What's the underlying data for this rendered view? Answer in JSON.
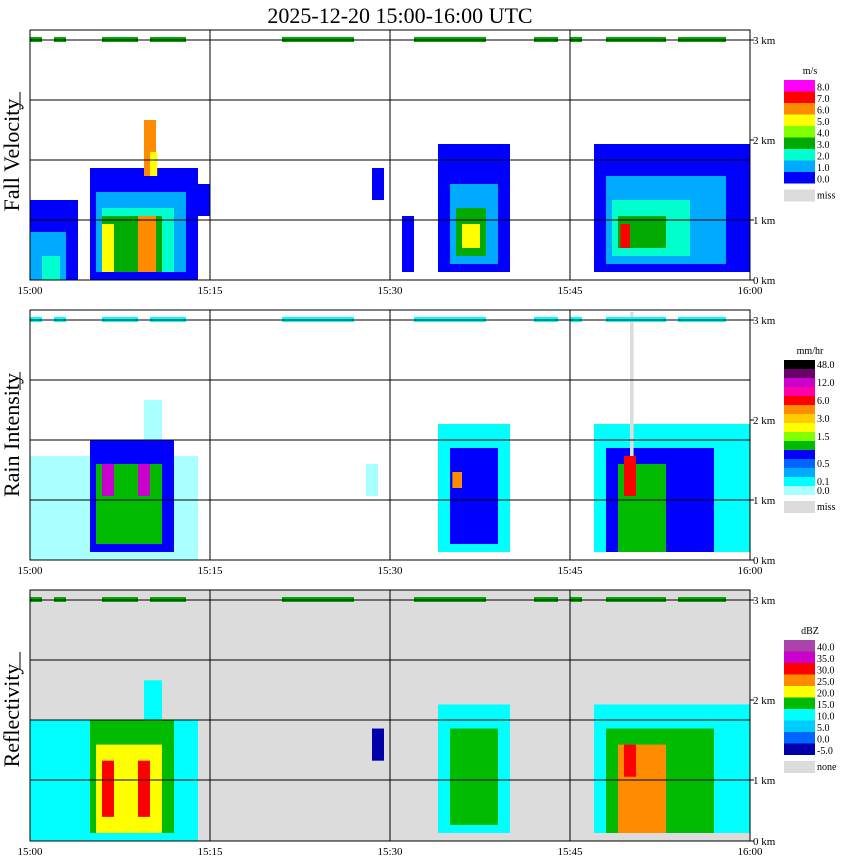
{
  "title": "2025-12-20  15:00-16:00 UTC",
  "x_ticks": [
    "15:00",
    "15:15",
    "15:30",
    "15:45",
    "16:00"
  ],
  "y_ticks": [
    "0 km",
    "1 km",
    "2 km",
    "3 km"
  ],
  "chart_data": [
    {
      "type": "heatmap",
      "panel_label": "Fall Velocity",
      "legend_unit": "m/s",
      "legend_entries": [
        {
          "label": "8.0",
          "color": "#ff00ff"
        },
        {
          "label": "7.0",
          "color": "#ff0000"
        },
        {
          "label": "6.0",
          "color": "#ff8c00"
        },
        {
          "label": "5.0",
          "color": "#ffff00"
        },
        {
          "label": "4.0",
          "color": "#7fff00"
        },
        {
          "label": "3.0",
          "color": "#00aa00"
        },
        {
          "label": "2.0",
          "color": "#00ffcc"
        },
        {
          "label": "1.0",
          "color": "#00aaff"
        },
        {
          "label": "0.0",
          "color": "#0000ff"
        },
        {
          "label": "miss",
          "color": "#dcdcdc"
        }
      ],
      "background": "#ffffff",
      "ylim": [
        0,
        3
      ],
      "xlim": [
        "15:00",
        "16:00"
      ],
      "grid": true,
      "cells": [
        {
          "t0": 0,
          "t1": 4,
          "z0": 0,
          "z1": 1.0,
          "c": "#0000ff"
        },
        {
          "t0": 0,
          "t1": 3,
          "z0": 0,
          "z1": 0.6,
          "c": "#00aaff"
        },
        {
          "t0": 1,
          "t1": 2.5,
          "z0": 0,
          "z1": 0.3,
          "c": "#00ffcc"
        },
        {
          "t0": 5,
          "t1": 14,
          "z0": 0,
          "z1": 1.4,
          "c": "#0000ff"
        },
        {
          "t0": 5.5,
          "t1": 13,
          "z0": 0.1,
          "z1": 1.1,
          "c": "#00aaff"
        },
        {
          "t0": 6,
          "t1": 12,
          "z0": 0.1,
          "z1": 0.9,
          "c": "#00ffcc"
        },
        {
          "t0": 6,
          "t1": 11,
          "z0": 0.1,
          "z1": 0.8,
          "c": "#00aa00"
        },
        {
          "t0": 6,
          "t1": 7,
          "z0": 0.1,
          "z1": 0.7,
          "c": "#ffff00"
        },
        {
          "t0": 9,
          "t1": 10.5,
          "z0": 0.1,
          "z1": 0.8,
          "c": "#ff8c00"
        },
        {
          "t0": 9.5,
          "t1": 10.5,
          "z0": 1.3,
          "z1": 2.0,
          "c": "#ff8c00"
        },
        {
          "t0": 10,
          "t1": 10.6,
          "z0": 1.3,
          "z1": 1.6,
          "c": "#ffff00"
        },
        {
          "t0": 14,
          "t1": 15,
          "z0": 0.8,
          "z1": 1.2,
          "c": "#0000ff"
        },
        {
          "t0": 28.5,
          "t1": 29.5,
          "z0": 1.0,
          "z1": 1.4,
          "c": "#0000ff"
        },
        {
          "t0": 31,
          "t1": 32,
          "z0": 0.1,
          "z1": 0.8,
          "c": "#0000ff"
        },
        {
          "t0": 34,
          "t1": 40,
          "z0": 0.1,
          "z1": 1.7,
          "c": "#0000ff"
        },
        {
          "t0": 35,
          "t1": 39,
          "z0": 0.2,
          "z1": 1.2,
          "c": "#00aaff"
        },
        {
          "t0": 35.5,
          "t1": 38,
          "z0": 0.3,
          "z1": 0.9,
          "c": "#00aa00"
        },
        {
          "t0": 36,
          "t1": 37.5,
          "z0": 0.4,
          "z1": 0.7,
          "c": "#ffff00"
        },
        {
          "t0": 47,
          "t1": 60,
          "z0": 0.1,
          "z1": 1.7,
          "c": "#0000ff"
        },
        {
          "t0": 48,
          "t1": 58,
          "z0": 0.2,
          "z1": 1.3,
          "c": "#00aaff"
        },
        {
          "t0": 48.5,
          "t1": 55,
          "z0": 0.3,
          "z1": 1.0,
          "c": "#00ffcc"
        },
        {
          "t0": 49,
          "t1": 53,
          "z0": 0.4,
          "z1": 0.8,
          "c": "#00aa00"
        },
        {
          "t0": 49.2,
          "t1": 50,
          "z0": 0.4,
          "z1": 0.7,
          "c": "#ff0000"
        }
      ]
    },
    {
      "type": "heatmap",
      "panel_label": "Rain Intensity",
      "legend_unit": "mm/hr",
      "legend_entries": [
        {
          "label": "48.0",
          "color": "#000000"
        },
        {
          "label": "",
          "color": "#6a006a"
        },
        {
          "label": "12.0",
          "color": "#cc00cc"
        },
        {
          "label": "",
          "color": "#ff00aa"
        },
        {
          "label": "6.0",
          "color": "#ff0000"
        },
        {
          "label": "",
          "color": "#ff8c00"
        },
        {
          "label": "3.0",
          "color": "#ffcc00"
        },
        {
          "label": "",
          "color": "#ffff00"
        },
        {
          "label": "1.5",
          "color": "#7fff00"
        },
        {
          "label": "",
          "color": "#00bb00"
        },
        {
          "label": "",
          "color": "#0000ff"
        },
        {
          "label": "0.5",
          "color": "#0066ff"
        },
        {
          "label": "",
          "color": "#00aaff"
        },
        {
          "label": "0.1",
          "color": "#00ffff"
        },
        {
          "label": "0.0",
          "color": "#aaffff"
        },
        {
          "label": "miss",
          "color": "#dcdcdc"
        }
      ],
      "background": "#ffffff",
      "ylim": [
        0,
        3
      ],
      "xlim": [
        "15:00",
        "16:00"
      ],
      "grid": true,
      "cells": [
        {
          "t0": 0,
          "t1": 14,
          "z0": 0,
          "z1": 1.3,
          "c": "#aaffff"
        },
        {
          "t0": 9.5,
          "t1": 11,
          "z0": 1.3,
          "z1": 2.0,
          "c": "#aaffff"
        },
        {
          "t0": 5,
          "t1": 12,
          "z0": 0.1,
          "z1": 1.5,
          "c": "#0000ff"
        },
        {
          "t0": 5.5,
          "t1": 11,
          "z0": 0.2,
          "z1": 1.2,
          "c": "#00bb00"
        },
        {
          "t0": 6,
          "t1": 7,
          "z0": 0.8,
          "z1": 1.2,
          "c": "#cc00cc"
        },
        {
          "t0": 9,
          "t1": 10,
          "z0": 0.8,
          "z1": 1.2,
          "c": "#cc00cc"
        },
        {
          "t0": 28,
          "t1": 29,
          "z0": 0.8,
          "z1": 1.2,
          "c": "#aaffff"
        },
        {
          "t0": 34,
          "t1": 40,
          "z0": 0.1,
          "z1": 1.7,
          "c": "#00ffff"
        },
        {
          "t0": 35,
          "t1": 39,
          "z0": 0.2,
          "z1": 1.4,
          "c": "#0000ff"
        },
        {
          "t0": 35.2,
          "t1": 36,
          "z0": 0.9,
          "z1": 1.1,
          "c": "#ff8c00"
        },
        {
          "t0": 47,
          "t1": 60,
          "z0": 0.1,
          "z1": 1.7,
          "c": "#00ffff"
        },
        {
          "t0": 48,
          "t1": 57,
          "z0": 0.1,
          "z1": 1.4,
          "c": "#0000ff"
        },
        {
          "t0": 49,
          "t1": 53,
          "z0": 0.1,
          "z1": 1.2,
          "c": "#00bb00"
        },
        {
          "t0": 49.5,
          "t1": 50.5,
          "z0": 0.8,
          "z1": 1.3,
          "c": "#ff0000"
        },
        {
          "t0": 50,
          "t1": 50.3,
          "z0": 1.3,
          "z1": 3.1,
          "c": "#dcdcdc"
        }
      ]
    },
    {
      "type": "heatmap",
      "panel_label": "Reflectivity",
      "legend_unit": "dBZ",
      "legend_entries": [
        {
          "label": "40.0",
          "color": "#aa44aa"
        },
        {
          "label": "35.0",
          "color": "#cc00cc"
        },
        {
          "label": "30.0",
          "color": "#ff0000"
        },
        {
          "label": "25.0",
          "color": "#ff8c00"
        },
        {
          "label": "20.0",
          "color": "#ffff00"
        },
        {
          "label": "15.0",
          "color": "#00bb00"
        },
        {
          "label": "10.0",
          "color": "#00ffff"
        },
        {
          "label": "5.0",
          "color": "#00ccff"
        },
        {
          "label": "0.0",
          "color": "#0066ff"
        },
        {
          "label": "-5.0",
          "color": "#0000aa"
        },
        {
          "label": "none",
          "color": "#dcdcdc"
        }
      ],
      "background": "#dcdcdc",
      "ylim": [
        0,
        3
      ],
      "xlim": [
        "15:00",
        "16:00"
      ],
      "grid": true,
      "cells": [
        {
          "t0": 0,
          "t1": 14,
          "z0": 0,
          "z1": 1.5,
          "c": "#00ffff"
        },
        {
          "t0": 9.5,
          "t1": 11,
          "z0": 1.5,
          "z1": 2.0,
          "c": "#00ffff"
        },
        {
          "t0": 5,
          "t1": 12,
          "z0": 0.1,
          "z1": 1.5,
          "c": "#00bb00"
        },
        {
          "t0": 5.5,
          "t1": 11,
          "z0": 0.1,
          "z1": 1.2,
          "c": "#ffff00"
        },
        {
          "t0": 6,
          "t1": 7,
          "z0": 0.3,
          "z1": 1.0,
          "c": "#ff0000"
        },
        {
          "t0": 9,
          "t1": 10,
          "z0": 0.3,
          "z1": 1.0,
          "c": "#ff0000"
        },
        {
          "t0": 28.5,
          "t1": 29.5,
          "z0": 1.0,
          "z1": 1.4,
          "c": "#0000aa"
        },
        {
          "t0": 34,
          "t1": 40,
          "z0": 0.1,
          "z1": 1.7,
          "c": "#00ffff"
        },
        {
          "t0": 35,
          "t1": 39,
          "z0": 0.2,
          "z1": 1.4,
          "c": "#00bb00"
        },
        {
          "t0": 47,
          "t1": 60,
          "z0": 0.1,
          "z1": 1.7,
          "c": "#00ffff"
        },
        {
          "t0": 48,
          "t1": 57,
          "z0": 0.1,
          "z1": 1.4,
          "c": "#00bb00"
        },
        {
          "t0": 49,
          "t1": 53,
          "z0": 0.1,
          "z1": 1.2,
          "c": "#ff8c00"
        },
        {
          "t0": 49.5,
          "t1": 50.5,
          "z0": 0.8,
          "z1": 1.2,
          "c": "#ff0000"
        }
      ]
    }
  ],
  "top_band": [
    {
      "t0": 0,
      "t1": 1,
      "c": "#00aa00"
    },
    {
      "t0": 2,
      "t1": 3,
      "c": "#00aa00"
    },
    {
      "t0": 6,
      "t1": 9,
      "c": "#00aa00"
    },
    {
      "t0": 10,
      "t1": 13,
      "c": "#00aa00"
    },
    {
      "t0": 21,
      "t1": 27,
      "c": "#00aa00"
    },
    {
      "t0": 32,
      "t1": 38,
      "c": "#00aa00"
    },
    {
      "t0": 42,
      "t1": 44,
      "c": "#00aa00"
    },
    {
      "t0": 45,
      "t1": 46,
      "c": "#00aa00"
    },
    {
      "t0": 48,
      "t1": 53,
      "c": "#00aa00"
    },
    {
      "t0": 54,
      "t1": 58,
      "c": "#00aa00"
    }
  ],
  "top_band_rain": "#00ffff"
}
